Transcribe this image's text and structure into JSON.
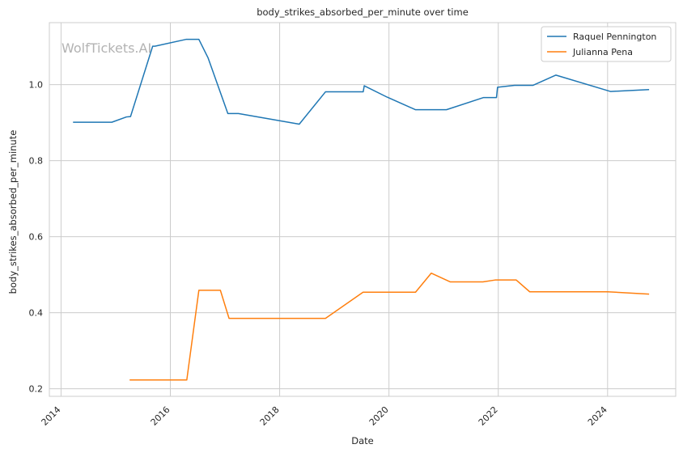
{
  "chart_data": {
    "type": "line",
    "title": "body_strikes_absorbed_per_minute over time",
    "xlabel": "Date",
    "ylabel": "body_strikes_absorbed_per_minute",
    "watermark": "WolfTickets.AI",
    "x_ticks": [
      "2014",
      "2016",
      "2018",
      "2020",
      "2022",
      "2024"
    ],
    "y_ticks": [
      "0.2",
      "0.4",
      "0.6",
      "0.8",
      "1.0"
    ],
    "xlim": [
      "2013-10-15",
      "2025-04-01"
    ],
    "ylim": [
      0.18,
      1.163
    ],
    "grid": true,
    "legend_position": "top-right",
    "series": [
      {
        "name": "Raquel Pennington",
        "color": "#1f77b4",
        "points": [
          [
            "2014-03-22",
            0.901
          ],
          [
            "2014-12-06",
            0.901
          ],
          [
            "2015-03-14",
            0.915
          ],
          [
            "2015-04-10",
            0.916
          ],
          [
            "2015-09-05",
            1.101
          ],
          [
            "2015-09-20",
            1.101
          ],
          [
            "2016-04-15",
            1.119
          ],
          [
            "2016-07-10",
            1.119
          ],
          [
            "2016-09-10",
            1.07
          ],
          [
            "2017-01-20",
            0.924
          ],
          [
            "2017-04-01",
            0.924
          ],
          [
            "2018-05-12",
            0.896
          ],
          [
            "2018-11-03",
            0.981
          ],
          [
            "2019-07-13",
            0.981
          ],
          [
            "2019-07-20",
            0.997
          ],
          [
            "2019-12-20",
            0.967
          ],
          [
            "2020-06-27",
            0.934
          ],
          [
            "2021-01-20",
            0.934
          ],
          [
            "2021-09-25",
            0.966
          ],
          [
            "2021-12-20",
            0.966
          ],
          [
            "2021-12-27",
            0.993
          ],
          [
            "2022-04-20",
            0.998
          ],
          [
            "2022-08-20",
            0.998
          ],
          [
            "2023-01-21",
            1.025
          ],
          [
            "2024-01-20",
            0.982
          ],
          [
            "2024-10-05",
            0.987
          ]
        ]
      },
      {
        "name": "Julianna Pena",
        "color": "#ff7f0e",
        "points": [
          [
            "2015-04-04",
            0.223
          ],
          [
            "2016-04-20",
            0.223
          ],
          [
            "2016-07-10",
            0.459
          ],
          [
            "2016-12-01",
            0.459
          ],
          [
            "2017-01-28",
            0.385
          ],
          [
            "2018-11-03",
            0.385
          ],
          [
            "2019-07-12",
            0.454
          ],
          [
            "2020-06-27",
            0.454
          ],
          [
            "2020-10-10",
            0.504
          ],
          [
            "2021-02-15",
            0.481
          ],
          [
            "2021-09-20",
            0.481
          ],
          [
            "2021-12-11",
            0.486
          ],
          [
            "2022-05-01",
            0.486
          ],
          [
            "2022-07-30",
            0.455
          ],
          [
            "2024-01-01",
            0.455
          ],
          [
            "2024-10-05",
            0.449
          ]
        ]
      }
    ]
  }
}
